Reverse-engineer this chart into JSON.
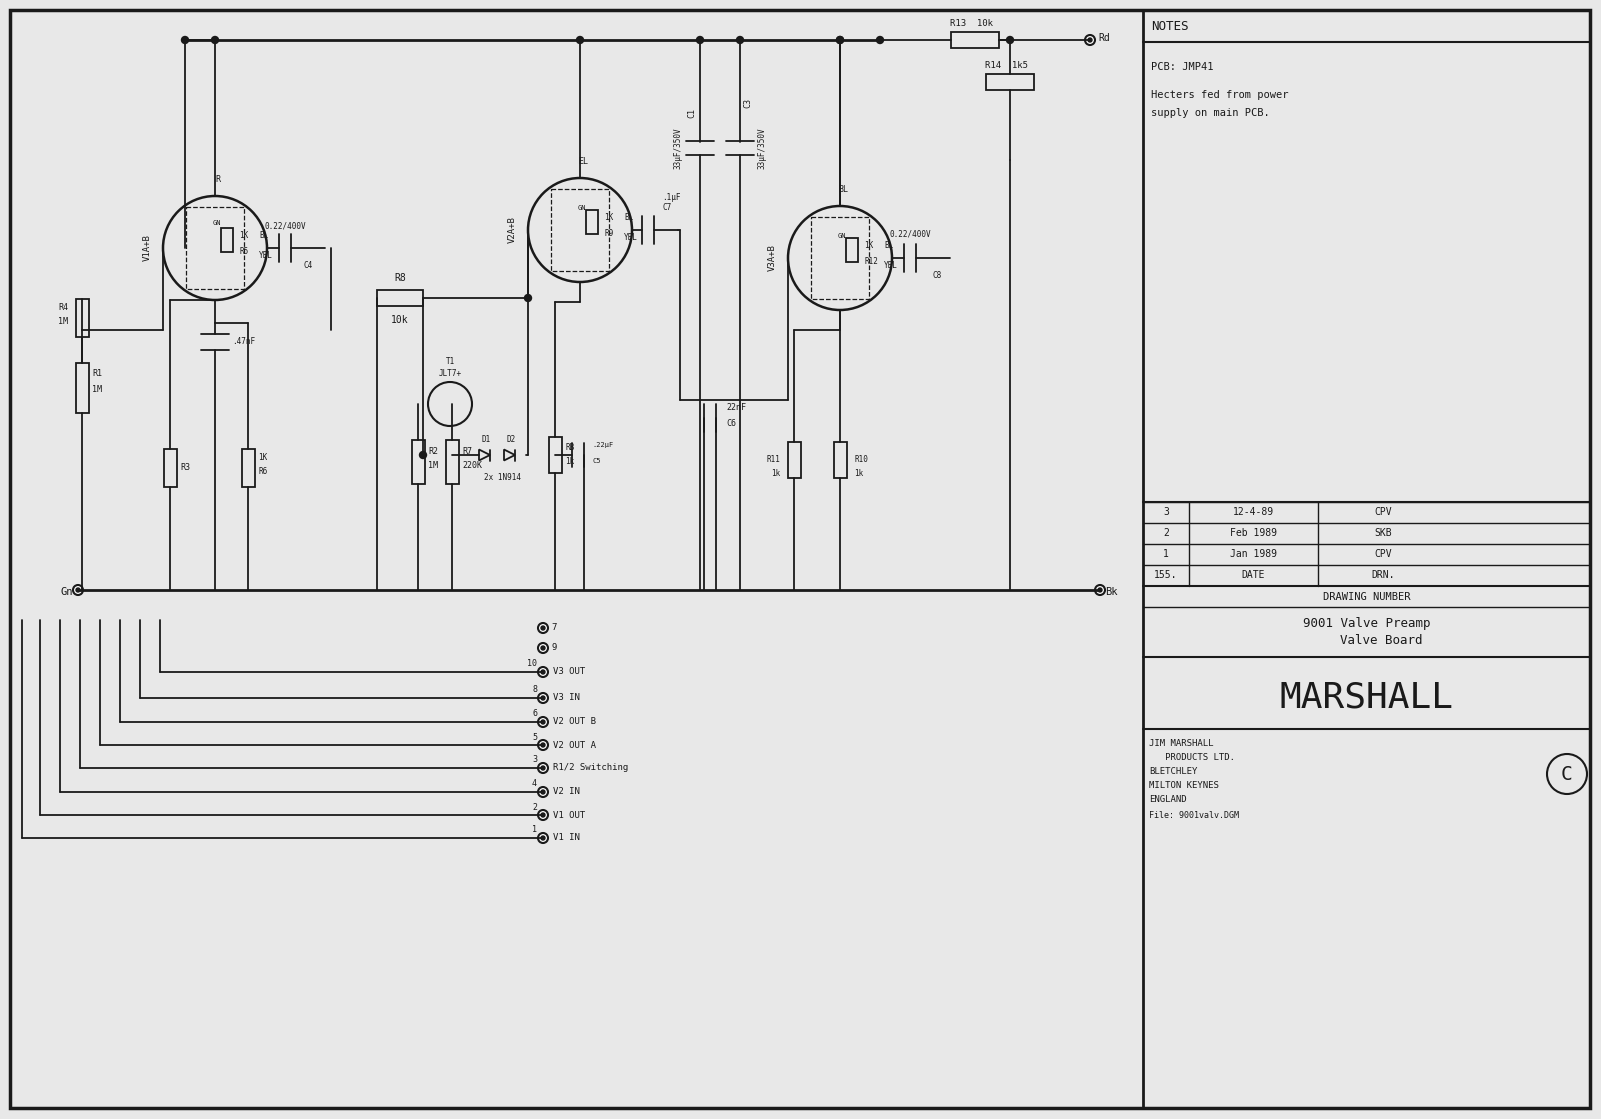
{
  "bg_color": "#e8e8e8",
  "line_color": "#1a1a1a",
  "lw": 1.3,
  "lw2": 2.0,
  "notes_lines": [
    "NOTES",
    "PCB: JMP41",
    "Hecters fed from power",
    "supply on main PCB."
  ],
  "rev_entries": [
    [
      "3",
      "12-4-89",
      "CPV"
    ],
    [
      "2",
      "Feb 1989",
      "SKB"
    ],
    [
      "1",
      "Jan 1989",
      "CPV"
    ],
    [
      "155.",
      "DATE",
      "DRN."
    ]
  ],
  "drawing_number_label": "DRAWING NUMBER",
  "drawing_title1": "9001 Valve Preamp",
  "drawing_title2": "    Valve Board",
  "company": "MARSHALL",
  "address_lines": [
    "JIM MARSHALL",
    "   PRODUCTS LTD.",
    "BLETCHLEY",
    "MILTON KEYNES",
    "ENGLAND"
  ],
  "file_label": "File: 9001valv.DGM",
  "connector_labels": [
    [
      "10",
      "V3 OUT"
    ],
    [
      "8",
      "V3 IN"
    ],
    [
      "6",
      "V2 OUT B"
    ],
    [
      "5",
      "V2 OUT A"
    ],
    [
      "3",
      "R1/2 Switching"
    ],
    [
      "4",
      "V2 IN"
    ],
    [
      "2",
      "V1 OUT"
    ],
    [
      "1",
      "V1 IN"
    ]
  ],
  "connector_extras": [
    "7",
    "9"
  ]
}
